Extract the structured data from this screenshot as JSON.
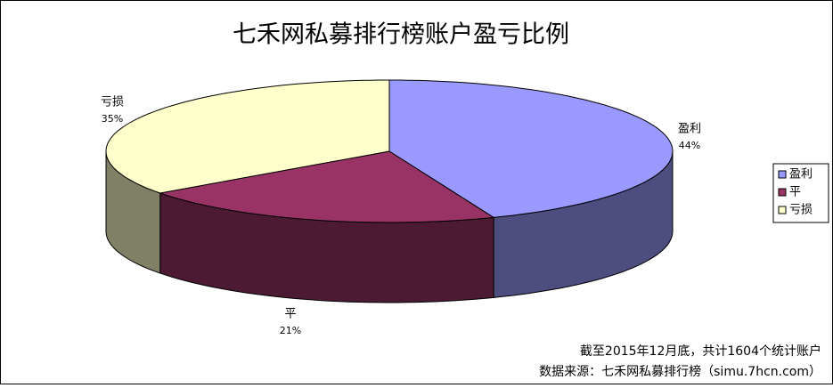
{
  "chart_data": {
    "type": "pie3d",
    "title": "七禾网私募排行榜账户盈亏比例",
    "categories": [
      "盈利",
      "平",
      "亏损"
    ],
    "values": [
      44,
      21,
      35
    ],
    "value_labels": [
      "44%",
      "21%",
      "35%"
    ],
    "colors": [
      "#9999ff",
      "#993366",
      "#ffffcc"
    ],
    "notes": [
      "截至2015年12月底，共计1604个统计账户",
      "数据来源：七禾网私募排行榜（simu.7hcn.com）"
    ]
  }
}
